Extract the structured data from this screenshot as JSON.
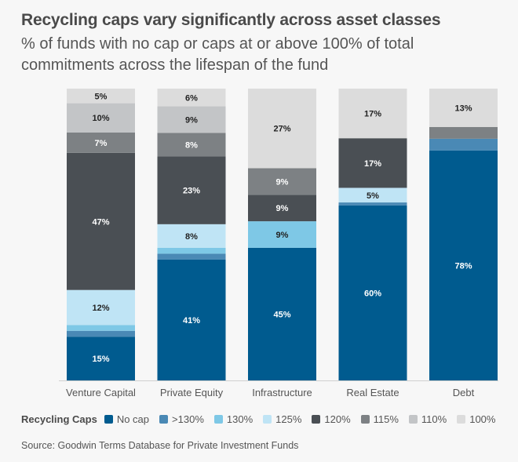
{
  "chart_data": {
    "type": "bar",
    "stacked": true,
    "title": "Recycling caps vary significantly across asset classes",
    "subtitle": "% of funds with no cap or caps at or above 100% of total commitments across the lifespan of the fund",
    "categories": [
      "Venture Capital",
      "Private Equity",
      "Infrastructure",
      "Real Estate",
      "Debt"
    ],
    "series": [
      {
        "name": "No cap",
        "color": "#005b8f",
        "values": [
          15,
          41,
          45,
          60,
          78
        ],
        "labels": [
          "15%",
          "41%",
          "45%",
          "60%",
          "78%"
        ]
      },
      {
        "name": ">130%",
        "color": "#4a89b5",
        "values": [
          2,
          2,
          0,
          1,
          4
        ],
        "labels": [
          "",
          "",
          "",
          "",
          ""
        ]
      },
      {
        "name": "130%",
        "color": "#7ec8e6",
        "values": [
          2,
          2,
          9,
          0,
          0
        ],
        "labels": [
          "",
          "",
          "9%",
          "",
          ""
        ]
      },
      {
        "name": "125%",
        "color": "#bfe4f5",
        "values": [
          12,
          8,
          0,
          5,
          0
        ],
        "labels": [
          "12%",
          "8%",
          "",
          "5%",
          ""
        ]
      },
      {
        "name": "120%",
        "color": "#4a4f54",
        "values": [
          47,
          23,
          9,
          17,
          0
        ],
        "labels": [
          "47%",
          "23%",
          "9%",
          "17%",
          ""
        ]
      },
      {
        "name": "115%",
        "color": "#7d8184",
        "values": [
          7,
          8,
          9,
          0,
          4
        ],
        "labels": [
          "7%",
          "8%",
          "9%",
          "",
          ""
        ]
      },
      {
        "name": "110%",
        "color": "#c3c5c7",
        "values": [
          10,
          9,
          0,
          0,
          0
        ],
        "labels": [
          "10%",
          "9%",
          "",
          "",
          ""
        ]
      },
      {
        "name": "100%",
        "color": "#dcdcdc",
        "values": [
          5,
          6,
          27,
          17,
          13
        ],
        "labels": [
          "5%",
          "6%",
          "27%",
          "17%",
          "13%"
        ]
      }
    ],
    "ylim": [
      0,
      100
    ],
    "legend_title": "Recycling Caps",
    "legend_position": "bottom",
    "grid": false
  },
  "source": "Source: Goodwin Terms Database for Private Investment Funds"
}
